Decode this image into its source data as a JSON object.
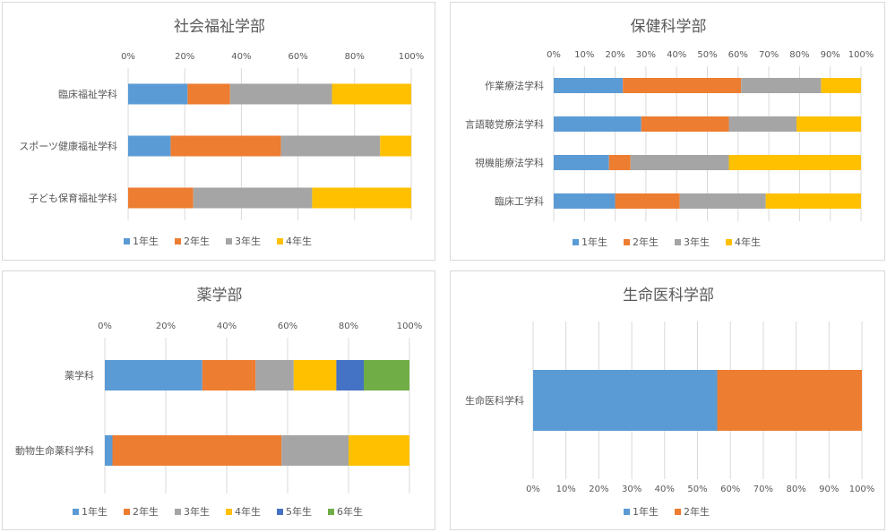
{
  "charts": [
    {
      "id": "social-welfare",
      "type": "bar",
      "orientation": "horizontal",
      "stacked": "percent",
      "title": "社会福祉学部",
      "categories": [
        "臨床福祉学科",
        "スポーツ健康福祉学科",
        "子ども保育福祉学科"
      ],
      "series": [
        {
          "name": "1年生",
          "color": "#5b9bd5",
          "values": [
            21,
            15,
            0
          ]
        },
        {
          "name": "2年生",
          "color": "#ed7d31",
          "values": [
            15,
            39,
            23
          ]
        },
        {
          "name": "3年生",
          "color": "#a5a5a5",
          "values": [
            36,
            35,
            42
          ]
        },
        {
          "name": "4年生",
          "color": "#ffc000",
          "values": [
            28,
            11,
            35
          ]
        }
      ],
      "ticks": [
        "0%",
        "20%",
        "40%",
        "60%",
        "80%",
        "100%"
      ],
      "axis_position": "top",
      "xlim": [
        0,
        100
      ],
      "grid": true,
      "legend": "bottom"
    },
    {
      "id": "health-science",
      "type": "bar",
      "orientation": "horizontal",
      "stacked": "percent",
      "title": "保健科学部",
      "categories": [
        "作業療法学科",
        "言語聴覚療法学科",
        "視機能療法学科",
        "臨床工学科"
      ],
      "series": [
        {
          "name": "1年生",
          "color": "#5b9bd5",
          "values": [
            22.5,
            28.5,
            18,
            20
          ]
        },
        {
          "name": "2年生",
          "color": "#ed7d31",
          "values": [
            38.5,
            28.5,
            7,
            21
          ]
        },
        {
          "name": "3年生",
          "color": "#a5a5a5",
          "values": [
            26,
            22,
            32,
            28
          ]
        },
        {
          "name": "4年生",
          "color": "#ffc000",
          "values": [
            13,
            21,
            43,
            31
          ]
        }
      ],
      "ticks": [
        "0%",
        "10%",
        "20%",
        "30%",
        "40%",
        "50%",
        "60%",
        "70%",
        "80%",
        "90%",
        "100%"
      ],
      "axis_position": "top",
      "xlim": [
        0,
        100
      ],
      "grid": true,
      "legend": "bottom"
    },
    {
      "id": "pharmacy",
      "type": "bar",
      "orientation": "horizontal",
      "stacked": "percent",
      "title": "薬学部",
      "categories": [
        "薬学科",
        "動物生命薬科学科"
      ],
      "series": [
        {
          "name": "1年生",
          "color": "#5b9bd5",
          "values": [
            32,
            2.5
          ]
        },
        {
          "name": "2年生",
          "color": "#ed7d31",
          "values": [
            17.5,
            55.5
          ]
        },
        {
          "name": "3年生",
          "color": "#a5a5a5",
          "values": [
            12.5,
            22
          ]
        },
        {
          "name": "4年生",
          "color": "#ffc000",
          "values": [
            14,
            20
          ]
        },
        {
          "name": "5年生",
          "color": "#4472c4",
          "values": [
            9,
            0
          ]
        },
        {
          "name": "6年生",
          "color": "#70ad47",
          "values": [
            15,
            0
          ]
        }
      ],
      "ticks": [
        "0%",
        "20%",
        "40%",
        "60%",
        "80%",
        "100%"
      ],
      "axis_position": "top",
      "xlim": [
        0,
        100
      ],
      "grid": true,
      "legend": "bottom"
    },
    {
      "id": "life-medical",
      "type": "bar",
      "orientation": "horizontal",
      "stacked": "percent",
      "title": "生命医科学部",
      "categories": [
        "生命医科学科"
      ],
      "series": [
        {
          "name": "1年生",
          "color": "#5b9bd5",
          "values": [
            56
          ]
        },
        {
          "name": "2年生",
          "color": "#ed7d31",
          "values": [
            44
          ]
        }
      ],
      "ticks": [
        "0%",
        "10%",
        "20%",
        "30%",
        "40%",
        "50%",
        "60%",
        "70%",
        "80%",
        "90%",
        "100%"
      ],
      "axis_position": "bottom",
      "xlim": [
        0,
        100
      ],
      "grid": true,
      "legend": "bottom"
    }
  ]
}
